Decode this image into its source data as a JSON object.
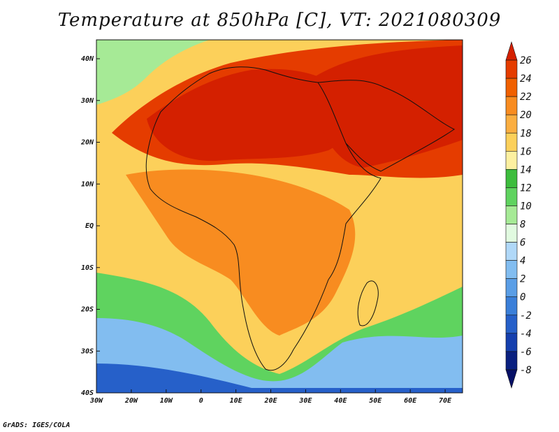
{
  "title": "Temperature at 850hPa [C], VT: 2021080309",
  "credit": "GrADS: IGES/COLA",
  "map": {
    "lon_range": [
      -30,
      75
    ],
    "lat_range": [
      -40,
      45
    ],
    "x_ticks": [
      "30W",
      "20W",
      "10W",
      "0",
      "10E",
      "20E",
      "30E",
      "40E",
      "50E",
      "60E",
      "70E"
    ],
    "y_ticks": [
      "40N",
      "30N",
      "20N",
      "10N",
      "EQ",
      "10S",
      "20S",
      "30S",
      "40S"
    ]
  },
  "colorbar": {
    "labels": [
      "26",
      "24",
      "22",
      "20",
      "18",
      "16",
      "14",
      "12",
      "10",
      "8",
      "6",
      "4",
      "2",
      "0",
      "-2",
      "-4",
      "-6",
      "-8"
    ],
    "colors": [
      "#d42000",
      "#e53c00",
      "#f06000",
      "#f88c20",
      "#fbae40",
      "#fcd05a",
      "#fdf0a0",
      "#3dbd3d",
      "#5fd35f",
      "#a6ea96",
      "#e1fae0",
      "#b0d8f8",
      "#82bdf0",
      "#5a9ee6",
      "#3a7fd9",
      "#2660c9",
      "#153fae",
      "#0a2080",
      "#061066"
    ]
  },
  "regions": [
    {
      "name": "sahara-hot",
      "color": "#d42000"
    },
    {
      "name": "arabia-hot",
      "color": "#d42000"
    },
    {
      "name": "north-warm",
      "color": "#e53c00"
    },
    {
      "name": "central-warm",
      "color": "#f88c20"
    },
    {
      "name": "southern-mild",
      "color": "#fbae40"
    },
    {
      "name": "ocean-cool",
      "color": "#5fd35f"
    },
    {
      "name": "south-cold",
      "color": "#5a9ee6"
    }
  ]
}
